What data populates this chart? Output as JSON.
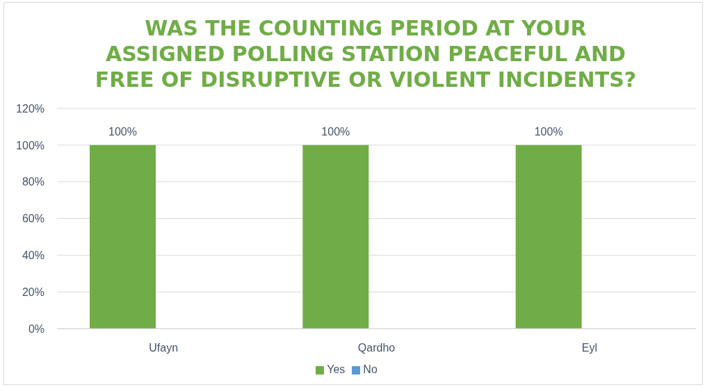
{
  "chart_data": {
    "type": "bar",
    "title": "WAS THE COUNTING PERIOD AT YOUR ASSIGNED POLLING STATION PEACEFUL AND FREE OF DISRUPTIVE OR VIOLENT INCIDENTS?",
    "categories": [
      "Ufayn",
      "Qardho",
      "Eyl"
    ],
    "series": [
      {
        "name": "Yes",
        "color": "#70ad47",
        "values": [
          100,
          100,
          100
        ],
        "value_labels": [
          "100%",
          "100%",
          "100%"
        ]
      },
      {
        "name": "No",
        "color": "#5b9bd5",
        "values": [
          0,
          0,
          0
        ]
      }
    ],
    "ylim": [
      0,
      120
    ],
    "yticks": [
      {
        "value": 0,
        "label": "0%"
      },
      {
        "value": 20,
        "label": "20%"
      },
      {
        "value": 40,
        "label": "40%"
      },
      {
        "value": 60,
        "label": "60%"
      },
      {
        "value": 80,
        "label": "80%"
      },
      {
        "value": 100,
        "label": "100%"
      },
      {
        "value": 120,
        "label": "120%"
      }
    ],
    "grid": "y",
    "legend": "bottom"
  }
}
